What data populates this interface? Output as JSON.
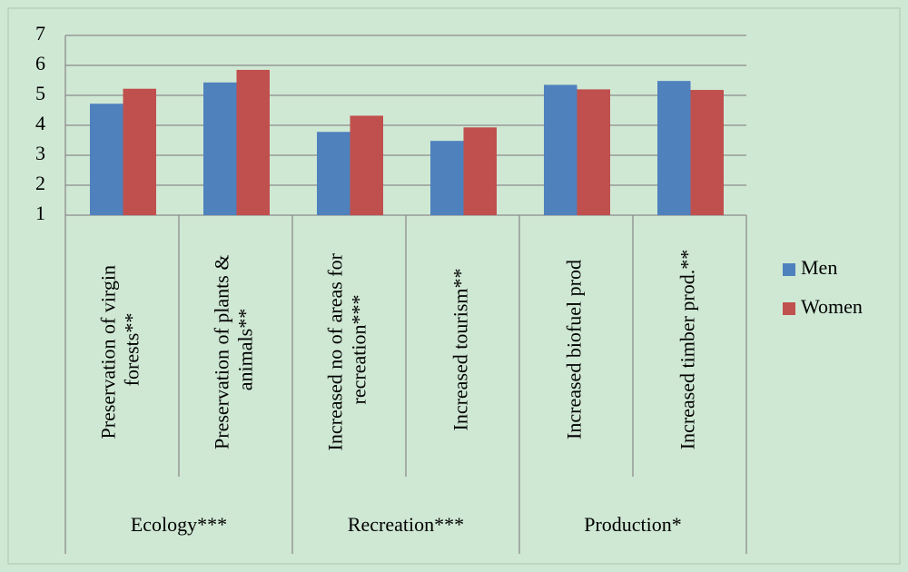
{
  "chart_data": {
    "type": "bar",
    "categories": [
      "Preservation of virgin forests**",
      "Preservation of plants & animals**",
      "Increased no of areas for recreation***",
      "Increased tourism**",
      "Increased biofuel prod",
      "Increased timber prod.**"
    ],
    "groups": [
      {
        "name": "Ecology***",
        "size": 2
      },
      {
        "name": "Recreation***",
        "size": 2
      },
      {
        "name": "Production*",
        "size": 2
      }
    ],
    "series": [
      {
        "name": "Men",
        "color": "#4f81bd",
        "values": [
          4.72,
          5.43,
          3.78,
          3.48,
          5.35,
          5.48
        ]
      },
      {
        "name": "Women",
        "color": "#c0504d",
        "values": [
          5.22,
          5.85,
          4.32,
          3.93,
          5.2,
          5.18
        ]
      }
    ],
    "ylim": [
      1,
      7
    ],
    "yticks": [
      1,
      2,
      3,
      4,
      5,
      6,
      7
    ],
    "grid": true,
    "legend": "right"
  }
}
